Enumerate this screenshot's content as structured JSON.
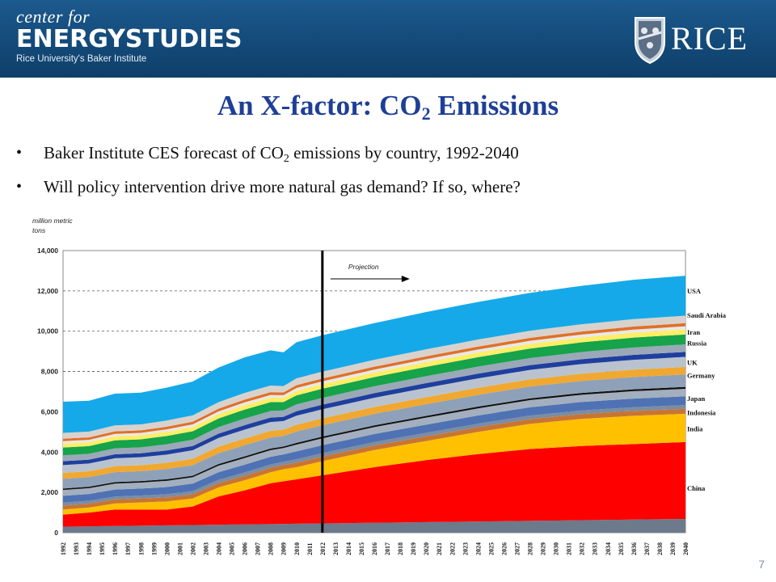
{
  "header": {
    "logo_line1": "center for",
    "logo_line2": "ENERGYSTUDIES",
    "logo_line3": "Rice University's Baker Institute",
    "rice_text": "RICE",
    "rice_shield_icon": "owl-shield-icon"
  },
  "title": {
    "main": "An X-factor: CO",
    "sub": "2",
    "rest": " Emissions"
  },
  "bullets": [
    {
      "text_before": "Baker Institute CES forecast of CO",
      "sub": "2",
      "text_after": " emissions by country, 1992-2040"
    },
    {
      "text": "Will policy intervention drive more natural gas demand? If so, where?"
    }
  ],
  "page_number": "7",
  "chart_data": {
    "type": "area",
    "stacked": true,
    "title": "",
    "ylabel": "million metric tons",
    "xlabel": "",
    "ylim": [
      0,
      14000
    ],
    "yticks": [
      0,
      2000,
      4000,
      6000,
      8000,
      10000,
      12000,
      14000
    ],
    "ytick_labels": [
      "0",
      "2,000",
      "4,000",
      "6,000",
      "8,000",
      "10,000",
      "12,000",
      "14,000"
    ],
    "grid": "dashed-horizontal",
    "x": [
      1992,
      1993,
      1994,
      1995,
      1996,
      1997,
      1998,
      1999,
      2000,
      2001,
      2002,
      2003,
      2004,
      2005,
      2006,
      2007,
      2008,
      2009,
      2010,
      2011,
      2012,
      2013,
      2014,
      2015,
      2016,
      2017,
      2018,
      2019,
      2020,
      2021,
      2022,
      2023,
      2024,
      2025,
      2026,
      2027,
      2028,
      2029,
      2030,
      2031,
      2032,
      2033,
      2034,
      2035,
      2036,
      2037,
      2038,
      2039,
      2040
    ],
    "projection_start": 2012,
    "projection_label": "Projection",
    "colors": {
      "China": "#ff0000",
      "India": "#ffc000",
      "Indonesia": "#c87533",
      "Japan": "#4f72b4",
      "Germany": "#f0a830",
      "UK": "#1f3f9e",
      "Russia": "#16a34a",
      "Iran": "#ffee66",
      "Saudi Arabia": "#e07028",
      "USA": "#16a9e9",
      "base": "#6c7a8c",
      "mixed": "#a3afbe"
    },
    "series_labels": [
      {
        "name": "USA",
        "ref_value": 12000
      },
      {
        "name": "Saudi Arabia",
        "ref_value": 10800
      },
      {
        "name": "Iran",
        "ref_value": 9950
      },
      {
        "name": "Russia",
        "ref_value": 9400
      },
      {
        "name": "UK",
        "ref_value": 8450
      },
      {
        "name": "Germany",
        "ref_value": 7800
      },
      {
        "name": "Japan",
        "ref_value": 6650
      },
      {
        "name": "Indonesia",
        "ref_value": 5950
      },
      {
        "name": "India",
        "ref_value": 5150
      },
      {
        "name": "China",
        "ref_value": 2200
      }
    ],
    "totals_anchor": {
      "x": [
        1992,
        1994,
        1996,
        1998,
        2000,
        2002,
        2004,
        2006,
        2008,
        2009,
        2010,
        2012,
        2016,
        2020,
        2024,
        2028,
        2032,
        2036,
        2040
      ],
      "total": [
        6500,
        6550,
        6900,
        6950,
        7200,
        7500,
        8200,
        8700,
        9050,
        8950,
        9450,
        9800,
        10400,
        10950,
        11450,
        11900,
        12250,
        12550,
        12750
      ],
      "china_top": [
        900,
        1000,
        1150,
        1150,
        1150,
        1300,
        1800,
        2100,
        2450,
        2550,
        2650,
        2850,
        3250,
        3600,
        3900,
        4150,
        4300,
        4400,
        4500
      ],
      "india_top": [
        1150,
        1250,
        1450,
        1500,
        1550,
        1700,
        2250,
        2600,
        3000,
        3150,
        3250,
        3550,
        4100,
        4550,
        5000,
        5400,
        5650,
        5800,
        5900
      ]
    }
  }
}
